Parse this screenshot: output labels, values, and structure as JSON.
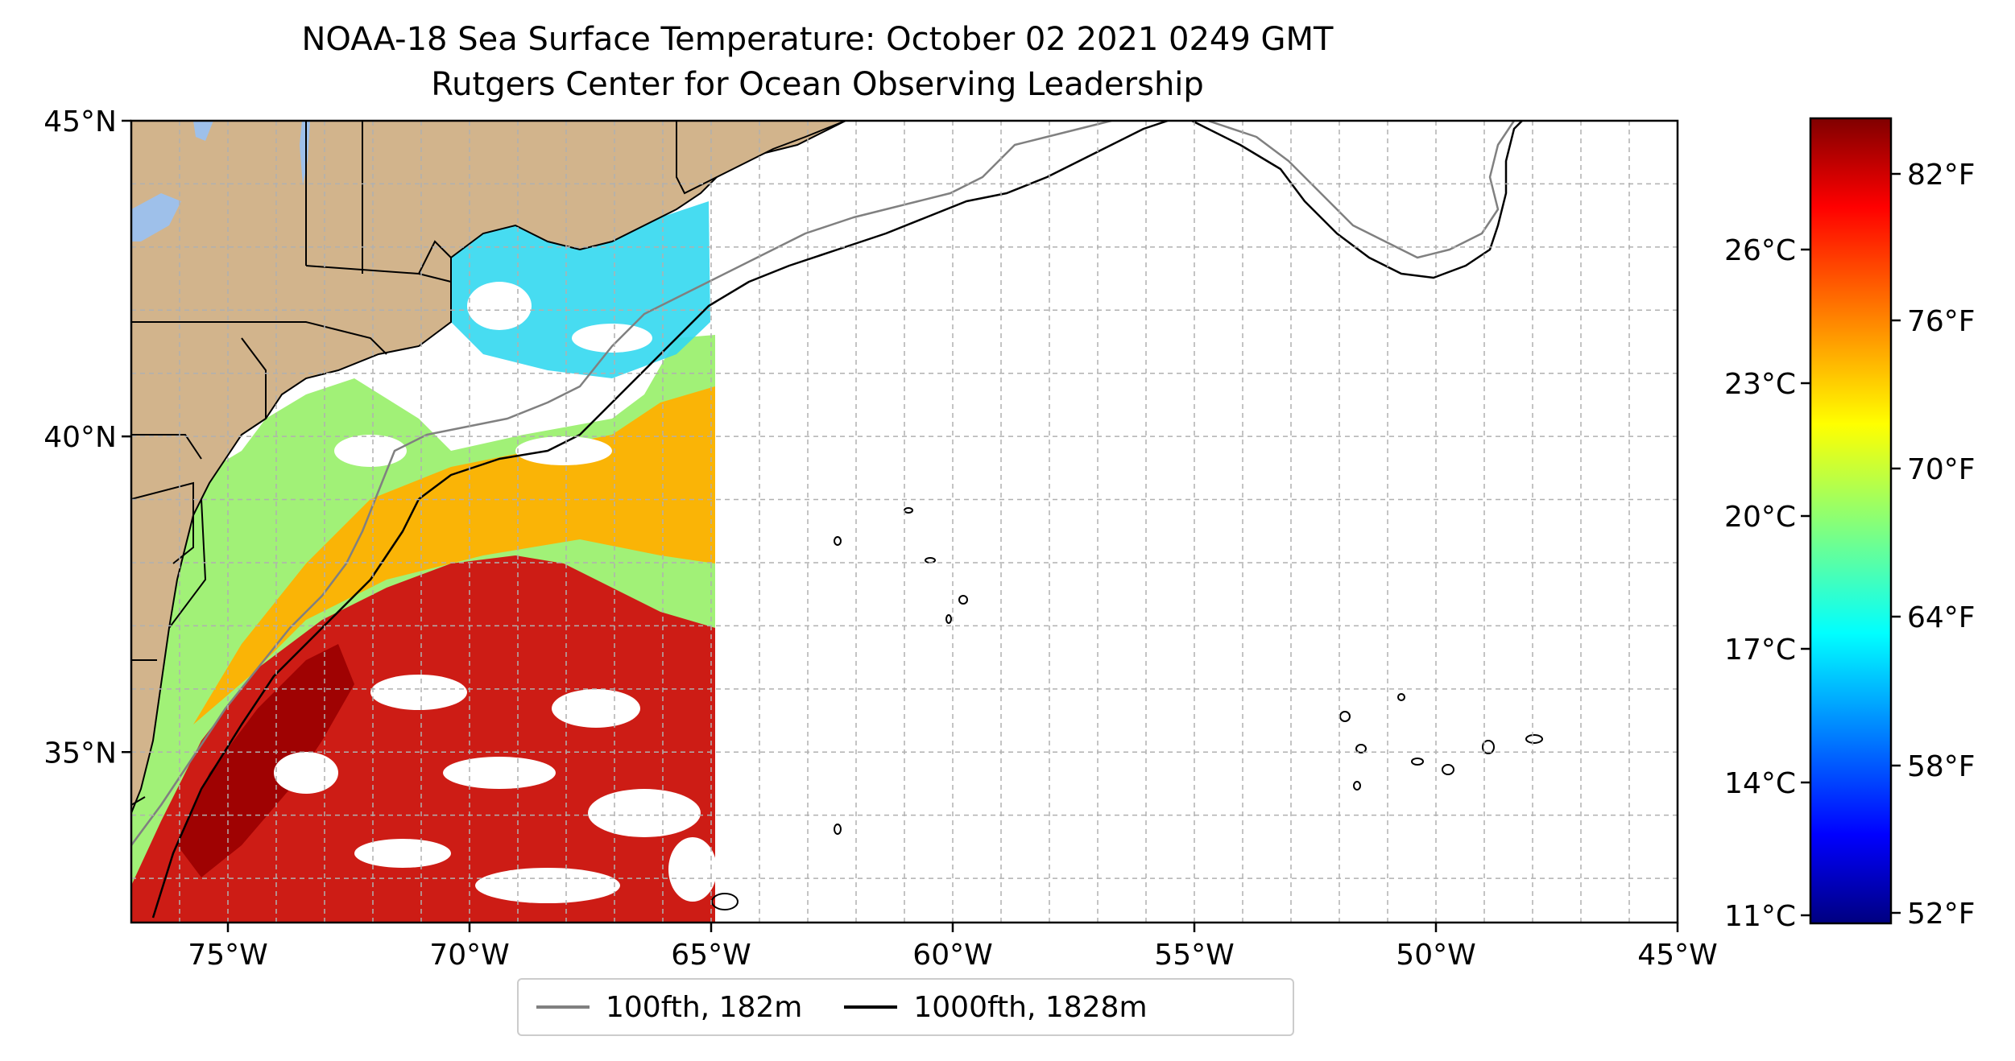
{
  "title": {
    "line1": "NOAA-18 Sea Surface Temperature: October 02 2021 0249 GMT",
    "line2": "Rutgers Center for Ocean Observing Leadership"
  },
  "map": {
    "lon_range": [
      -77,
      -45
    ],
    "lat_range": [
      32.3,
      45
    ],
    "x_ticks": [
      {
        "lon": -75,
        "label": "75°W"
      },
      {
        "lon": -70,
        "label": "70°W"
      },
      {
        "lon": -65,
        "label": "65°W"
      },
      {
        "lon": -60,
        "label": "60°W"
      },
      {
        "lon": -55,
        "label": "55°W"
      },
      {
        "lon": -50,
        "label": "50°W"
      },
      {
        "lon": -45,
        "label": "45°W"
      }
    ],
    "y_ticks": [
      {
        "lat": 45,
        "label": "45°N"
      },
      {
        "lat": 40,
        "label": "40°N"
      },
      {
        "lat": 35,
        "label": "35°N"
      }
    ],
    "grid": true,
    "colors": {
      "land": "#d2b48c",
      "lakes": "#9ec0ea",
      "contour_100": "#808080",
      "contour_1000": "#000000",
      "grid": "#b0b0b0"
    }
  },
  "colorbar": {
    "colormap": "jet",
    "celsius_ticks": [
      "26°C",
      "23°C",
      "20°C",
      "17°C",
      "14°C",
      "11°C"
    ],
    "fahrenheit_ticks": [
      "82°F",
      "76°F",
      "70°F",
      "64°F",
      "58°F",
      "52°F"
    ]
  },
  "legend": {
    "items": [
      {
        "label": "100fth, 182m",
        "color": "#808080"
      },
      {
        "label": "1000fth, 1828m",
        "color": "#000000"
      }
    ]
  }
}
